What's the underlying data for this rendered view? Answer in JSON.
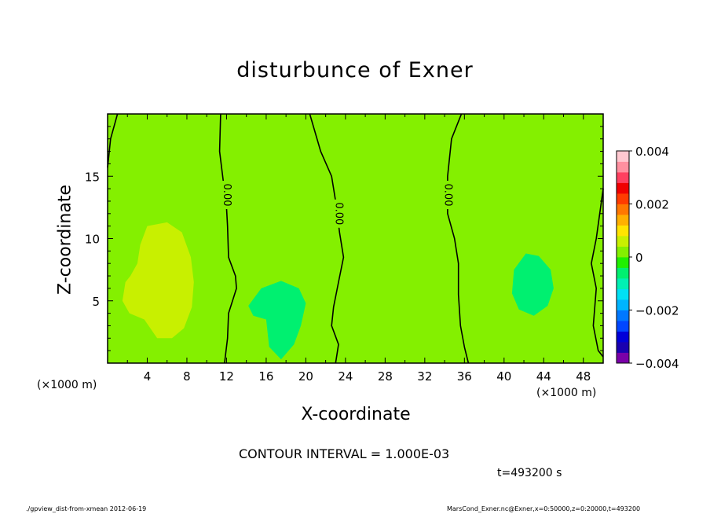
{
  "title": "disturbunce of Exner",
  "xlabel": "X-coordinate",
  "ylabel": "Z-coordinate",
  "x_unit_left": "(×1000 m)",
  "x_unit_right": "(×1000 m)",
  "contour_interval": "CONTOUR INTERVAL = 1.000E-03",
  "time_label": "t=493200 s",
  "footer_left": "./gpview_dist-from-xmean  2012-06-19",
  "footer_right": "MarsCond_Exner.nc@Exner,x=0:50000,z=0:20000,t=493200",
  "chart_data": {
    "type": "contour",
    "title": "disturbunce of Exner",
    "xlabel": "X-coordinate",
    "ylabel": "Z-coordinate",
    "xlim": [
      0,
      50
    ],
    "ylim": [
      0,
      20
    ],
    "x_ticks": [
      4,
      8,
      12,
      16,
      20,
      24,
      28,
      32,
      36,
      40,
      44,
      48
    ],
    "y_ticks": [
      5,
      10,
      15
    ],
    "contour_interval": 0.001,
    "contour_labels": [
      {
        "text": "0.00",
        "x": 12,
        "y": 13.5
      },
      {
        "text": "0.00",
        "x": 23.3,
        "y": 12
      },
      {
        "text": "0.00",
        "x": 34.3,
        "y": 13.5
      }
    ],
    "zero_contours": [
      [
        [
          1.0,
          20
        ],
        [
          0.3,
          18
        ],
        [
          0,
          15.7
        ]
      ],
      [
        [
          11.4,
          20
        ],
        [
          11.3,
          17
        ],
        [
          11.8,
          13.8
        ],
        [
          12,
          12.5
        ],
        [
          12.1,
          11
        ],
        [
          12.2,
          8.5
        ],
        [
          12.9,
          7
        ],
        [
          13,
          6
        ],
        [
          12.2,
          4
        ],
        [
          12.1,
          2
        ],
        [
          11.8,
          0
        ]
      ],
      [
        [
          20.4,
          20
        ],
        [
          21.5,
          17
        ],
        [
          22.6,
          15
        ],
        [
          23,
          13
        ],
        [
          23.4,
          10.5
        ],
        [
          23.8,
          8.5
        ],
        [
          23.3,
          6.5
        ],
        [
          22.8,
          4.5
        ],
        [
          22.6,
          3
        ],
        [
          23.3,
          1.5
        ],
        [
          23,
          0
        ]
      ],
      [
        [
          35.7,
          20
        ],
        [
          34.7,
          18
        ],
        [
          34.3,
          15
        ],
        [
          34.3,
          12
        ],
        [
          35,
          10
        ],
        [
          35.4,
          8
        ],
        [
          35.4,
          5.5
        ],
        [
          35.6,
          3
        ],
        [
          36,
          1.3
        ],
        [
          36.4,
          0
        ]
      ],
      [
        [
          50,
          14
        ],
        [
          49.3,
          10
        ],
        [
          48.8,
          8
        ],
        [
          49.3,
          6
        ],
        [
          49,
          3
        ],
        [
          49.5,
          1
        ],
        [
          50,
          0.5
        ]
      ]
    ],
    "regions": [
      {
        "level": 0.0005,
        "polygon": [
          [
            4,
            11
          ],
          [
            6,
            11.3
          ],
          [
            7.5,
            10.5
          ],
          [
            8.4,
            8.5
          ],
          [
            8.7,
            6.5
          ],
          [
            8.5,
            4.5
          ],
          [
            7.7,
            2.8
          ],
          [
            6.5,
            2
          ],
          [
            5,
            2
          ],
          [
            3.7,
            3.5
          ],
          [
            2.2,
            4
          ],
          [
            1.5,
            5
          ],
          [
            1.8,
            6.5
          ],
          [
            2.3,
            7
          ],
          [
            3,
            8
          ],
          [
            3.3,
            9.5
          ]
        ]
      },
      {
        "level": -0.0005,
        "polygon": [
          [
            15.5,
            6
          ],
          [
            17.5,
            6.6
          ],
          [
            19.3,
            6
          ],
          [
            20,
            4.8
          ],
          [
            19.5,
            3
          ],
          [
            18.8,
            1.5
          ],
          [
            17.5,
            0.3
          ],
          [
            16.3,
            1.3
          ],
          [
            16,
            3.5
          ],
          [
            14.7,
            3.8
          ],
          [
            14.2,
            4.6
          ]
        ]
      },
      {
        "level": -0.0005,
        "polygon": [
          [
            42.2,
            8.8
          ],
          [
            43.5,
            8.6
          ],
          [
            44.7,
            7.5
          ],
          [
            45,
            6
          ],
          [
            44.4,
            4.6
          ],
          [
            43,
            3.8
          ],
          [
            41.5,
            4.3
          ],
          [
            40.8,
            5.6
          ],
          [
            41,
            7.5
          ]
        ]
      }
    ],
    "background_level": 0.0,
    "colorbar": {
      "min": -0.004,
      "max": 0.004,
      "tick_values": [
        0.004,
        0.002,
        0,
        -0.002,
        -0.004
      ],
      "tick_labels": [
        "0.004",
        "0.002",
        "0",
        "−0.002",
        "−0.004"
      ],
      "colors": [
        "#7a00a8",
        "#1a00b0",
        "#0000d8",
        "#0046ff",
        "#0078ff",
        "#00b4ff",
        "#00e0f4",
        "#00f0b4",
        "#00f070",
        "#20f000",
        "#84f000",
        "#c8f000",
        "#ffe400",
        "#ffb000",
        "#ff7800",
        "#ff3c00",
        "#f00000",
        "#ff4060",
        "#ff90a0",
        "#ffc8d0"
      ]
    }
  }
}
